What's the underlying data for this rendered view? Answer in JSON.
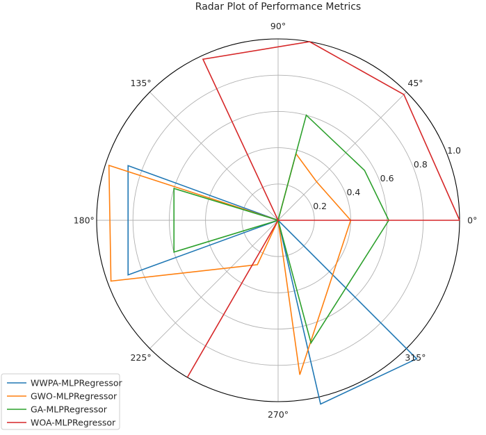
{
  "chart_data": {
    "type": "radar",
    "title": "Radar Plot of Performance Metrics",
    "angle_tick_labels": [
      "0°",
      "45°",
      "90°",
      "135°",
      "180°",
      "225°",
      "270°",
      "315°"
    ],
    "angle_ticks_deg": [
      0,
      45,
      90,
      135,
      180,
      225,
      270,
      315
    ],
    "radial_tick_labels": [
      "0.2",
      "0.4",
      "0.6",
      "0.8",
      "1.0"
    ],
    "radial_ticks": [
      0.2,
      0.4,
      0.6,
      0.8,
      1.0
    ],
    "rlim": [
      0,
      1.0
    ],
    "grid": true,
    "legend_position": "bottom-left",
    "series": [
      {
        "name": "WWPA-MLPRegressor",
        "color": "#1f77b4",
        "points": [
          {
            "angle_deg": 135,
            "r": 0.0
          },
          {
            "angle_deg": 160,
            "r": 0.88
          },
          {
            "angle_deg": 200,
            "r": 0.88
          },
          {
            "angle_deg": 0,
            "r": 0.0
          },
          {
            "angle_deg": 315,
            "r": 1.08
          },
          {
            "angle_deg": 283,
            "r": 1.04
          },
          {
            "angle_deg": 0,
            "r": 0.0
          }
        ]
      },
      {
        "name": "GWO-MLPRegressor",
        "color": "#ff7f0e",
        "points": [
          {
            "angle_deg": 0,
            "r": 0.4
          },
          {
            "angle_deg": 45,
            "r": 0.3
          },
          {
            "angle_deg": 75,
            "r": 0.38
          },
          {
            "angle_deg": 0,
            "r": 0.0
          },
          {
            "angle_deg": 162,
            "r": 0.98
          },
          {
            "angle_deg": 200,
            "r": 0.98
          },
          {
            "angle_deg": 245,
            "r": 0.27
          },
          {
            "angle_deg": 0,
            "r": 0.0
          },
          {
            "angle_deg": 278,
            "r": 0.86
          },
          {
            "angle_deg": 0,
            "r": 0.4
          }
        ]
      },
      {
        "name": "GA-MLPRegressor",
        "color": "#2ca02c",
        "points": [
          {
            "angle_deg": 0,
            "r": 0.61
          },
          {
            "angle_deg": 30,
            "r": 0.55
          },
          {
            "angle_deg": 75,
            "r": 0.6
          },
          {
            "angle_deg": 0,
            "r": 0.0
          },
          {
            "angle_deg": 163,
            "r": 0.6
          },
          {
            "angle_deg": 197,
            "r": 0.6
          },
          {
            "angle_deg": 0,
            "r": 0.0
          },
          {
            "angle_deg": 0,
            "r": 0.0
          },
          {
            "angle_deg": 285,
            "r": 0.7
          },
          {
            "angle_deg": 0,
            "r": 0.61
          }
        ]
      },
      {
        "name": "WOA-MLPRegressor",
        "color": "#d62728",
        "points": [
          {
            "angle_deg": 0,
            "r": 1.0
          },
          {
            "angle_deg": 45,
            "r": 0.98
          },
          {
            "angle_deg": 80,
            "r": 1.0
          },
          {
            "angle_deg": 115,
            "r": 0.98
          },
          {
            "angle_deg": 0,
            "r": 0.0
          },
          {
            "angle_deg": 240,
            "r": 1.0
          },
          {
            "angle_deg": 0,
            "r": 0.0
          },
          {
            "angle_deg": 0,
            "r": 1.0
          }
        ]
      }
    ]
  }
}
